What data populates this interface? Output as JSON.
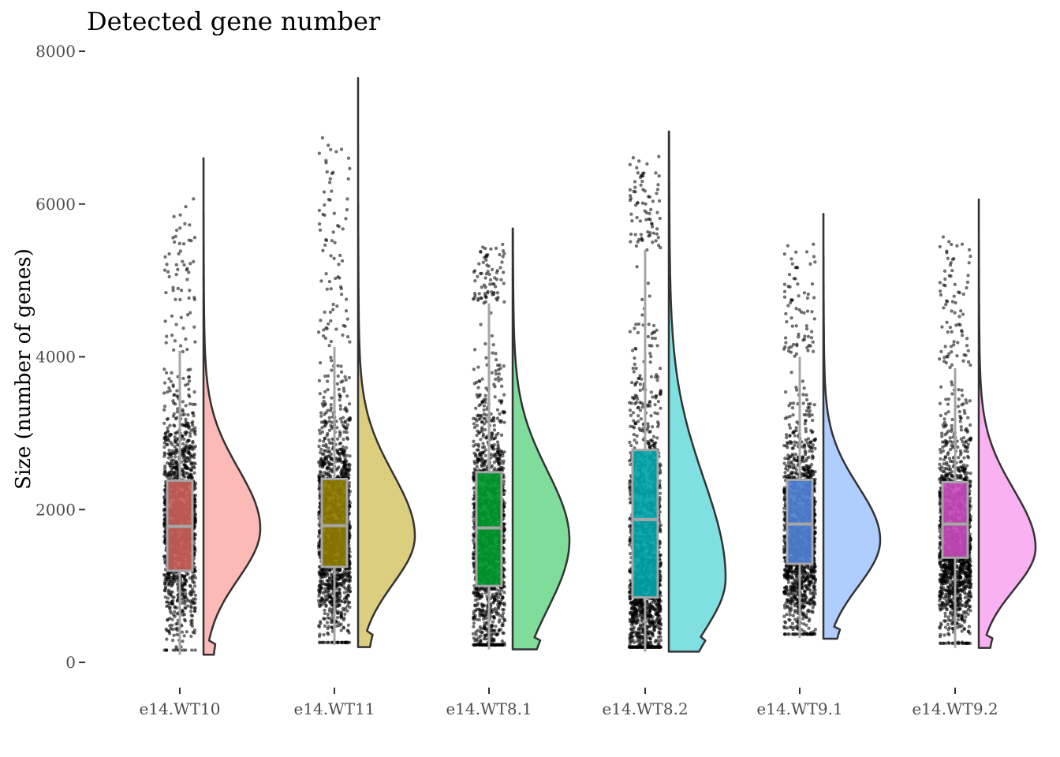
{
  "chart_data": {
    "type": "violin",
    "title": "Detected gene number",
    "xlabel": "",
    "ylabel": "Size (number of genes)",
    "ylim": [
      0,
      8000
    ],
    "yticks": [
      0,
      2000,
      4000,
      6000,
      8000
    ],
    "grid": false,
    "legend": "none",
    "series": [
      {
        "name": "e14.WT10",
        "color": "#F8766D",
        "color_dark": "#c95f58",
        "min": 100,
        "max": 6600,
        "q1": 1200,
        "median": 1780,
        "q3": 2380,
        "whisker_low": 100,
        "whisker_high": 4080,
        "mode": 1750,
        "sd_low": 650,
        "sd_high": 780
      },
      {
        "name": "e14.WT11",
        "color": "#B79F00",
        "color_dark": "#8f7c00",
        "min": 200,
        "max": 7650,
        "q1": 1250,
        "median": 1790,
        "q3": 2400,
        "whisker_low": 230,
        "whisker_high": 4130,
        "mode": 1650,
        "sd_low": 620,
        "sd_high": 820
      },
      {
        "name": "e14.WT8.1",
        "color": "#00BA38",
        "color_dark": "#009a2e",
        "min": 170,
        "max": 5680,
        "q1": 1000,
        "median": 1760,
        "q3": 2490,
        "whisker_low": 170,
        "whisker_high": 4700,
        "mode": 1600,
        "sd_low": 900,
        "sd_high": 900
      },
      {
        "name": "e14.WT8.2",
        "color": "#00BFC4",
        "color_dark": "#00a3a8",
        "min": 140,
        "max": 6950,
        "q1": 850,
        "median": 1870,
        "q3": 2780,
        "whisker_low": 140,
        "whisker_high": 5400,
        "mode": 1100,
        "sd_low": 700,
        "sd_high": 1300
      },
      {
        "name": "e14.WT9.1",
        "color": "#619CFF",
        "color_dark": "#4f80d6",
        "min": 310,
        "max": 5870,
        "q1": 1290,
        "median": 1810,
        "q3": 2390,
        "whisker_low": 320,
        "whisker_high": 4000,
        "mode": 1600,
        "sd_low": 600,
        "sd_high": 700
      },
      {
        "name": "e14.WT9.2",
        "color": "#F564E3",
        "color_dark": "#c44bb8",
        "min": 190,
        "max": 6060,
        "q1": 1370,
        "median": 1810,
        "q3": 2360,
        "whisker_low": 190,
        "whisker_high": 3850,
        "mode": 1500,
        "sd_low": 550,
        "sd_high": 760
      }
    ]
  }
}
